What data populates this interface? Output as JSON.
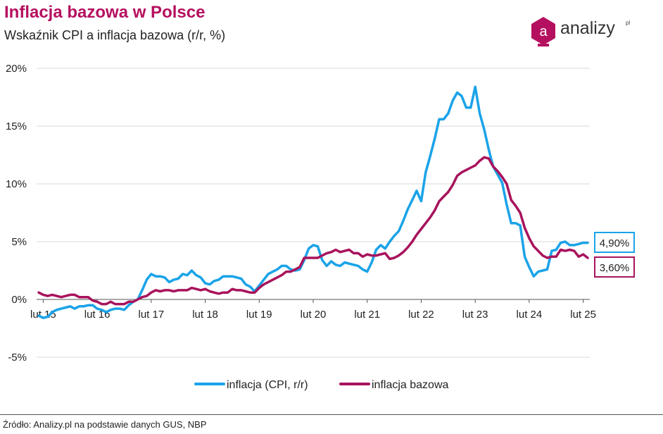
{
  "header": {
    "title": "Inflacja bazowa w Polsce",
    "subtitle": "Wskaźnik CPI a inflacja bazowa (r/r, %)"
  },
  "logo": {
    "glyph": "a",
    "text": "analizy",
    "sup": "pl"
  },
  "source": "Źródło: Analizy.pl na podstawie danych GUS, NBP",
  "chart_data": {
    "type": "line",
    "x_start": "2015-01",
    "x_end": "2025-02",
    "x_ticks": [
      "lut 15",
      "lut 16",
      "lut 17",
      "lut 18",
      "lut 19",
      "lut 20",
      "lut 21",
      "lut 22",
      "lut 23",
      "lut 24",
      "lut 25"
    ],
    "y_ticks": [
      "20%",
      "15%",
      "10%",
      "5%",
      "0%",
      "-5%"
    ],
    "ylim": [
      -5,
      20
    ],
    "grid": true,
    "legend_position": "bottom",
    "end_labels": [
      "4,90%",
      "3,60%"
    ],
    "series": [
      {
        "name": "inflacja (CPI, r/r)",
        "color": "#1aa3e8",
        "values": [
          -1.4,
          -1.6,
          -1.5,
          -1.1,
          -0.9,
          -0.8,
          -0.7,
          -0.6,
          -0.8,
          -0.6,
          -0.6,
          -0.5,
          -0.5,
          -0.8,
          -0.9,
          -1.1,
          -0.9,
          -0.8,
          -0.8,
          -0.9,
          -0.5,
          -0.2,
          0.0,
          0.8,
          1.7,
          2.2,
          2.0,
          2.0,
          1.9,
          1.5,
          1.7,
          1.8,
          2.2,
          2.1,
          2.5,
          2.1,
          1.9,
          1.4,
          1.3,
          1.6,
          1.7,
          2.0,
          2.0,
          2.0,
          1.9,
          1.8,
          1.3,
          1.1,
          0.7,
          1.2,
          1.7,
          2.2,
          2.4,
          2.6,
          2.9,
          2.9,
          2.6,
          2.5,
          2.6,
          3.4,
          4.4,
          4.7,
          4.6,
          3.4,
          2.9,
          3.3,
          3.0,
          2.9,
          3.2,
          3.1,
          3.0,
          2.9,
          2.6,
          2.4,
          3.2,
          4.3,
          4.7,
          4.4,
          5.0,
          5.5,
          5.9,
          6.8,
          7.8,
          8.6,
          9.4,
          8.5,
          11.0,
          12.4,
          13.9,
          15.6,
          15.6,
          16.1,
          17.2,
          17.9,
          17.6,
          16.6,
          16.6,
          18.4,
          16.1,
          14.7,
          13.0,
          11.5,
          10.8,
          10.1,
          8.2,
          6.6,
          6.6,
          6.4,
          3.7,
          2.8,
          2.0,
          2.4,
          2.5,
          2.6,
          4.2,
          4.3,
          4.9,
          5.0,
          4.7,
          4.7,
          4.8,
          4.9,
          4.9
        ]
      },
      {
        "name": "inflacja bazowa",
        "color": "#a8135c",
        "values": [
          0.6,
          0.4,
          0.3,
          0.4,
          0.3,
          0.2,
          0.3,
          0.4,
          0.4,
          0.2,
          0.2,
          0.2,
          -0.1,
          -0.2,
          -0.4,
          -0.4,
          -0.2,
          -0.4,
          -0.4,
          -0.4,
          -0.2,
          -0.2,
          0.0,
          0.2,
          0.3,
          0.6,
          0.8,
          0.7,
          0.8,
          0.8,
          0.7,
          0.8,
          0.8,
          0.8,
          1.0,
          0.9,
          0.8,
          0.9,
          0.7,
          0.6,
          0.5,
          0.6,
          0.6,
          0.9,
          0.8,
          0.8,
          0.7,
          0.6,
          0.6,
          1.0,
          1.3,
          1.5,
          1.7,
          1.9,
          2.1,
          2.4,
          2.4,
          2.6,
          2.8,
          3.6,
          3.6,
          3.6,
          3.6,
          3.8,
          4.0,
          4.1,
          4.3,
          4.1,
          4.2,
          4.3,
          4.0,
          4.0,
          3.7,
          3.9,
          3.8,
          3.8,
          3.9,
          4.0,
          3.5,
          3.6,
          3.8,
          4.1,
          4.5,
          5.0,
          5.6,
          6.1,
          6.6,
          7.1,
          7.7,
          8.5,
          8.9,
          9.3,
          9.9,
          10.7,
          11.0,
          11.2,
          11.4,
          11.6,
          12.0,
          12.3,
          12.2,
          11.5,
          11.1,
          10.6,
          10.0,
          8.6,
          8.1,
          7.5,
          6.2,
          5.3,
          4.6,
          4.2,
          3.8,
          3.6,
          3.7,
          3.7,
          4.3,
          4.2,
          4.3,
          4.2,
          3.7,
          3.9,
          3.6
        ]
      }
    ]
  }
}
